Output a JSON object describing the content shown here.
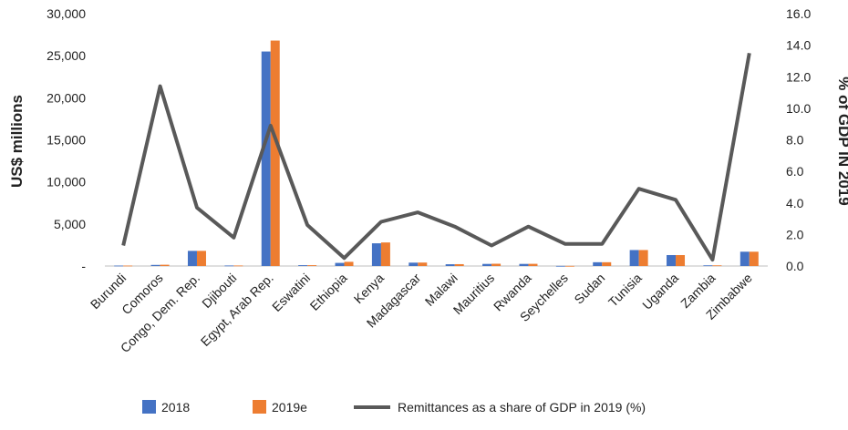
{
  "chart_data": {
    "type": "bar",
    "categories": [
      "Burundi",
      "Comoros",
      "Congo, Dem. Rep.",
      "Djibouti",
      "Egypt, Arab Rep.",
      "Eswatini",
      "Ethiopia",
      "Kenya",
      "Madagascar",
      "Malawi",
      "Mauritius",
      "Rwanda",
      "Seychelles",
      "Sudan",
      "Tunisia",
      "Uganda",
      "Zambia",
      "Zimbabwe"
    ],
    "series": [
      {
        "name": "2018",
        "type": "bar",
        "axis": "left",
        "color": "#4472c4",
        "values": [
          50,
          130,
          1800,
          60,
          25500,
          100,
          370,
          2700,
          400,
          210,
          250,
          250,
          15,
          450,
          1900,
          1300,
          80,
          1700
        ]
      },
      {
        "name": "2019e",
        "type": "bar",
        "axis": "left",
        "color": "#ed7d31",
        "values": [
          50,
          150,
          1800,
          60,
          26800,
          100,
          500,
          2800,
          410,
          220,
          270,
          260,
          15,
          450,
          1900,
          1300,
          80,
          1700
        ]
      },
      {
        "name": "Remittances as a share of GDP in 2019 (%)",
        "type": "line",
        "axis": "right",
        "color": "#595959",
        "values": [
          1.3,
          11.4,
          3.7,
          1.8,
          8.9,
          2.6,
          0.5,
          2.8,
          3.4,
          2.5,
          1.3,
          2.5,
          1.4,
          1.4,
          4.9,
          4.2,
          0.4,
          13.5
        ]
      }
    ],
    "left_axis": {
      "label": "US$ millions",
      "range": [
        0,
        30000
      ],
      "tick_values": [
        0,
        5000,
        10000,
        15000,
        20000,
        25000,
        30000
      ],
      "tick_labels": [
        "-",
        "5,000",
        "10,000",
        "15,000",
        "20,000",
        "25,000",
        "30,000"
      ]
    },
    "right_axis": {
      "label": "% of GDP IN 2019",
      "range": [
        0,
        16
      ],
      "tick_values": [
        0,
        2,
        4,
        6,
        8,
        10,
        12,
        14,
        16
      ],
      "tick_labels": [
        "0.0",
        "2.0",
        "4.0",
        "6.0",
        "8.0",
        "10.0",
        "12.0",
        "14.0",
        "16.0"
      ]
    },
    "grid": false,
    "legend_position": "bottom"
  }
}
